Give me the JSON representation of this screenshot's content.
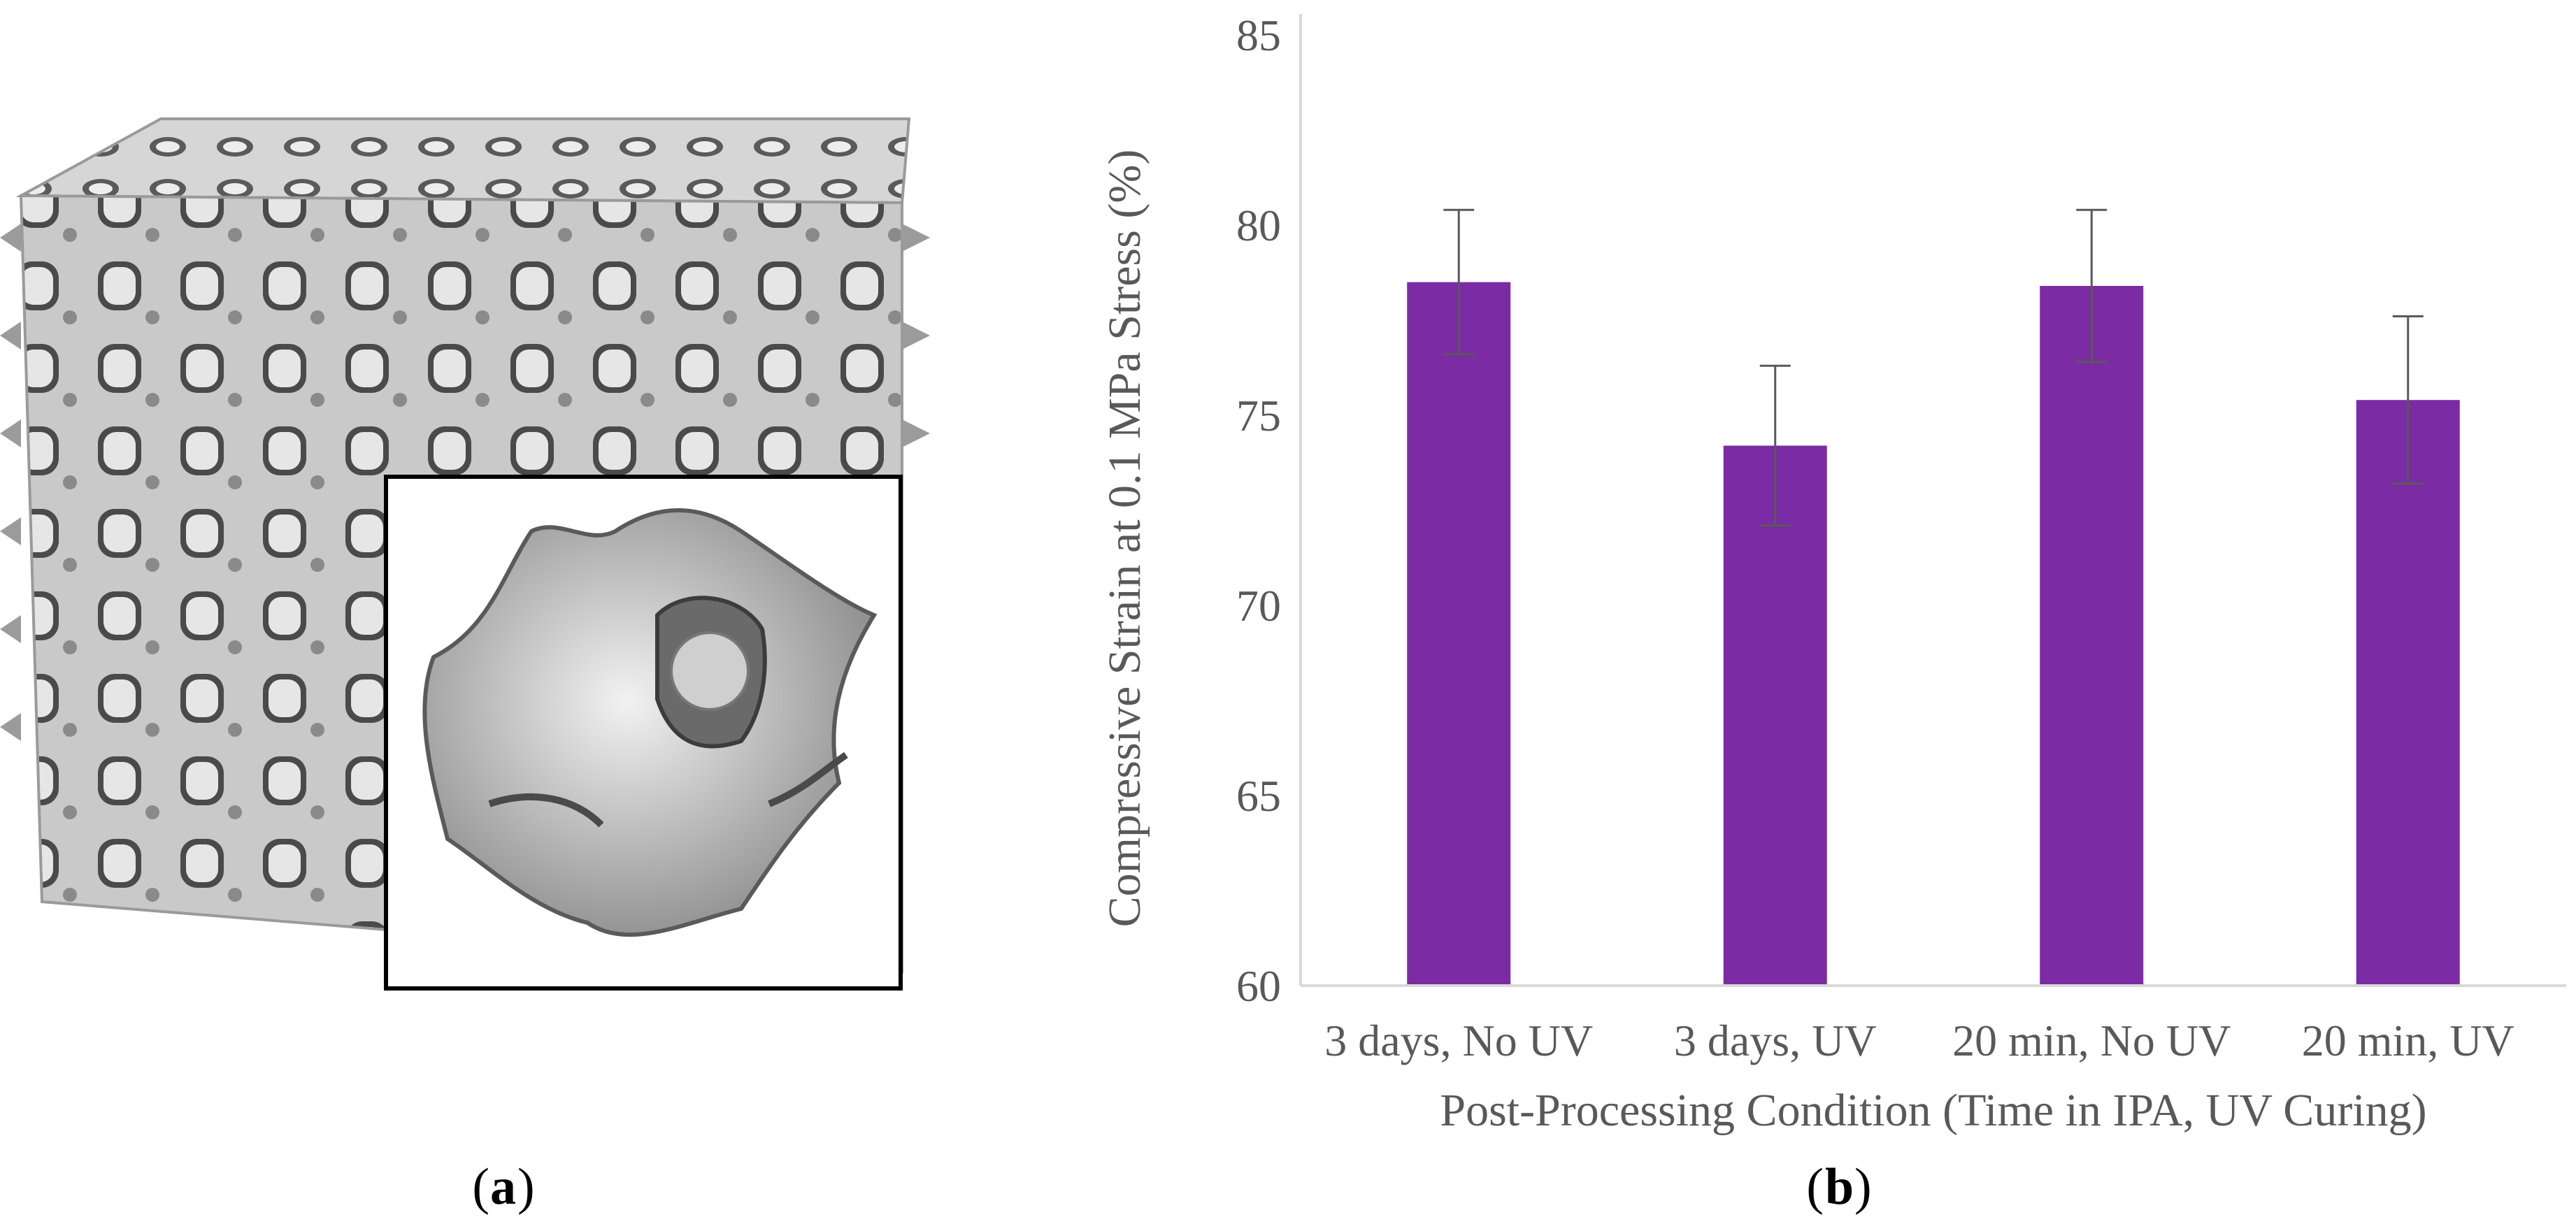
{
  "panel_a": {
    "label_prefix": "(",
    "label_letter": "a",
    "label_suffix": ")"
  },
  "panel_b": {
    "label_prefix": "(",
    "label_letter": "b",
    "label_suffix": ")"
  },
  "colors": {
    "bar": "#7B2BA3",
    "axis": "#D9D9D9",
    "errorbar": "#595959",
    "lattice": "#a9a9a9"
  },
  "chart_data": {
    "type": "bar",
    "title": "",
    "xlabel": "Post-Processing Condition (Time in IPA, UV Curing)",
    "ylabel": "Compressive Strain at 0.1 MPa Stress (%)",
    "categories": [
      "3 days, No UV",
      "3 days, UV",
      "20 min, No UV",
      "20 min, UV"
    ],
    "values": [
      78.5,
      74.2,
      78.4,
      75.4
    ],
    "errors": [
      1.9,
      2.1,
      2.0,
      2.2
    ],
    "ylim": [
      60,
      85
    ],
    "yticks": [
      "60",
      "65",
      "70",
      "75",
      "80",
      "85"
    ],
    "grid": false,
    "legend": "none"
  }
}
